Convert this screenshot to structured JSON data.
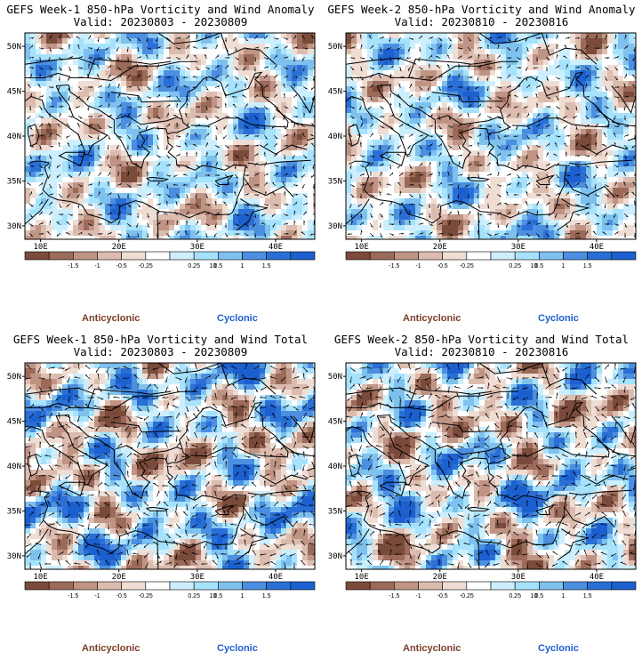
{
  "panels": [
    {
      "title_line1": "GEFS Week-1 850-hPa Vorticity and Wind Anomaly",
      "title_line2": "Valid: 20230803 - 20230809",
      "field": "anomaly",
      "seed": 11
    },
    {
      "title_line1": "GEFS Week-2 850-hPa Vorticity and Wind Anomaly",
      "title_line2": "Valid: 20230810 - 20230816",
      "field": "anomaly",
      "seed": 23
    },
    {
      "title_line1": "GEFS Week-1 850-hPa Vorticity and Wind Total",
      "title_line2": "Valid: 20230803 - 20230809",
      "field": "total",
      "seed": 37
    },
    {
      "title_line1": "GEFS Week-2 850-hPa Vorticity and Wind Total",
      "title_line2": "Valid: 20230810 - 20230816",
      "field": "total",
      "seed": 51
    }
  ],
  "axes": {
    "lat_labels": [
      "50N",
      "45N",
      "40N",
      "35N",
      "30N"
    ],
    "lon_labels": [
      "10E",
      "20E",
      "30E",
      "40E"
    ]
  },
  "colorbar": {
    "tick_labels": [
      "-1.5",
      "-1",
      "-0.5",
      "-0.25",
      "0.25",
      "0.5",
      "1",
      "1.5"
    ],
    "unit_label": "10",
    "colors": [
      "#7a4a3a",
      "#9c6a58",
      "#bf9484",
      "#dbbcae",
      "#efdcd3",
      "#ffffff",
      "#cdeefc",
      "#a6e2fb",
      "#7ec1ef",
      "#4c8fe0",
      "#2a6fd6",
      "#1c5fcf"
    ]
  },
  "legend": {
    "anticyclonic": "Anticyclonic",
    "cyclonic": "Cyclonic",
    "anticyclonic_color": "#7b3f2a",
    "cyclonic_color": "#1f5fd0"
  }
}
